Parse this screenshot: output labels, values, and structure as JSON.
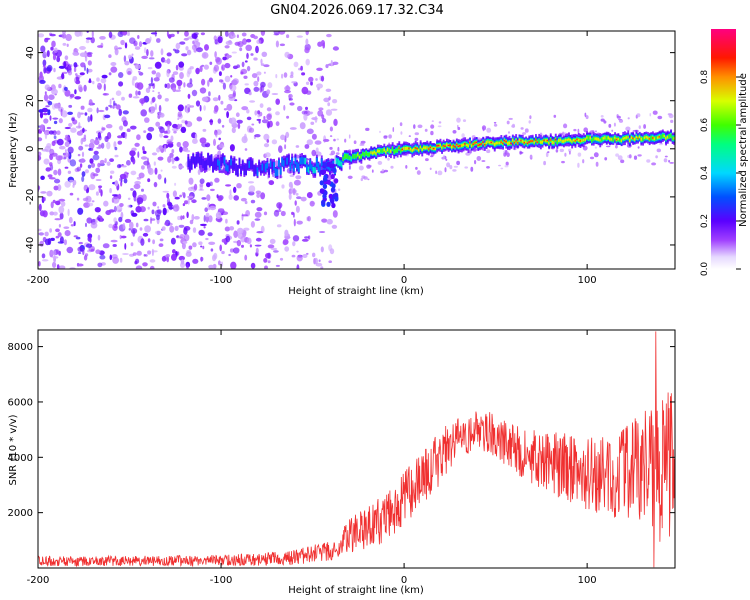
{
  "title": "GN04.2026.069.17.32.C34",
  "chart_data": [
    {
      "type": "heatmap",
      "name": "spectrogram",
      "xlabel": "Height of straight line (km)",
      "ylabel": "Frequency (Hz)",
      "xlim": [
        -200,
        148
      ],
      "ylim": [
        -50,
        49
      ],
      "x_ticks": [
        -200,
        -100,
        0,
        100
      ],
      "y_ticks": [
        -40,
        -20,
        0,
        20,
        40
      ],
      "colorbar": {
        "label": "Normalized spectral amplitude",
        "range": [
          0,
          1
        ],
        "ticks": [
          "0.0",
          "0.2",
          "0.4",
          "0.6",
          "0.8"
        ]
      },
      "noise_region": {
        "x": [
          -200,
          -37
        ],
        "y": [
          -50,
          49
        ]
      },
      "ridge": {
        "x": [
          -118,
          -100,
          -85,
          -70,
          -60,
          -50,
          -40,
          -35,
          -30,
          -20,
          -10,
          0,
          10,
          20,
          40,
          60,
          80,
          100,
          120,
          148
        ],
        "frequency": [
          -5,
          -6,
          -8,
          -8,
          -6,
          -7,
          -8,
          -6,
          -4,
          -2,
          -1,
          0,
          0,
          1,
          2,
          3,
          3,
          4,
          4,
          5
        ],
        "amplitude": [
          0.25,
          0.35,
          0.3,
          0.35,
          0.4,
          0.45,
          0.4,
          0.55,
          0.65,
          0.75,
          0.8,
          0.85,
          0.9,
          0.9,
          0.95,
          0.9,
          0.85,
          0.8,
          0.8,
          0.75
        ]
      }
    },
    {
      "type": "line",
      "name": "snr",
      "xlabel": "Height of straight line (km)",
      "ylabel": "SNR (10 * v/v)",
      "xlim": [
        -200,
        148
      ],
      "ylim": [
        0,
        8600
      ],
      "x_ticks": [
        -200,
        -100,
        0,
        100
      ],
      "y_ticks": [
        2000,
        4000,
        6000,
        8000
      ],
      "color": "#f03030",
      "envelope": {
        "x": [
          -200,
          -150,
          -100,
          -80,
          -60,
          -45,
          -36,
          -30,
          -20,
          -10,
          0,
          10,
          20,
          30,
          40,
          50,
          60,
          70,
          80,
          90,
          100,
          110,
          120,
          130,
          140,
          148
        ],
        "mean": [
          250,
          250,
          280,
          300,
          400,
          550,
          650,
          1200,
          1500,
          1800,
          2500,
          3200,
          4000,
          4700,
          5000,
          4800,
          4300,
          4000,
          3800,
          3600,
          3400,
          3300,
          3400,
          3500,
          3600,
          3800
        ],
        "spread": [
          180,
          180,
          200,
          220,
          280,
          350,
          350,
          700,
          800,
          900,
          1000,
          1000,
          1000,
          800,
          700,
          800,
          900,
          1000,
          1100,
          1300,
          1400,
          1500,
          1700,
          2100,
          2700,
          2600
        ]
      },
      "peak": {
        "x": 137.5,
        "y": 8550
      },
      "min_dip": {
        "x": 136.5,
        "y": 30
      }
    }
  ]
}
